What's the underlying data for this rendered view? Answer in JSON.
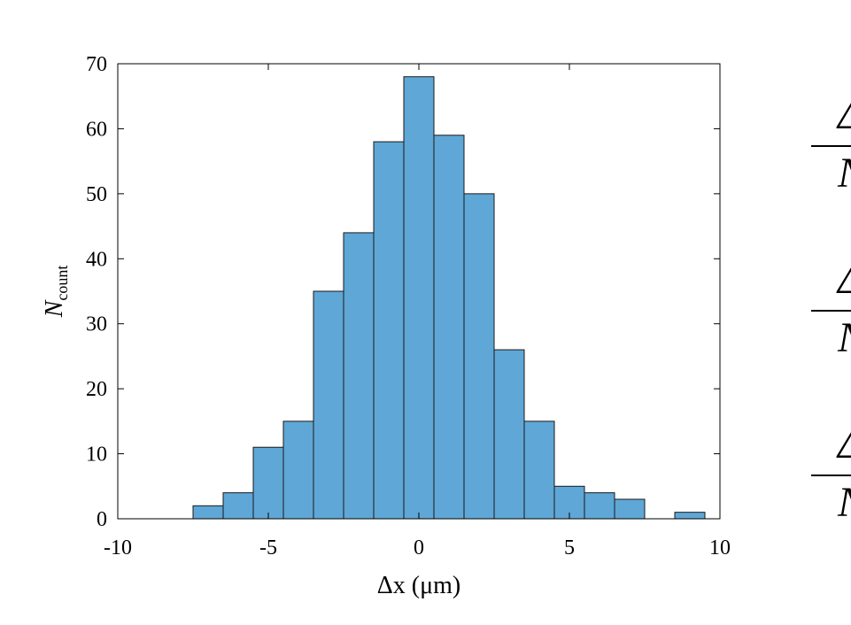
{
  "chart_data": {
    "type": "bar",
    "subtype": "histogram",
    "bin_edges": [
      -7.5,
      -6.5,
      -5.5,
      -4.5,
      -3.5,
      -2.5,
      -1.5,
      -0.5,
      0.5,
      1.5,
      2.5,
      3.5,
      4.5,
      5.5,
      6.5,
      7.5,
      8.5,
      9.5
    ],
    "counts": [
      2,
      4,
      11,
      15,
      35,
      44,
      58,
      68,
      59,
      50,
      26,
      15,
      5,
      4,
      3,
      0,
      1
    ],
    "title": "",
    "xlabel": "Δx (μm)",
    "ylabel_main": "N",
    "ylabel_sub": "count",
    "xlim": [
      -10,
      10
    ],
    "ylim": [
      0,
      70
    ],
    "xticks": [
      -10,
      -5,
      0,
      5,
      10
    ],
    "xtick_labels": [
      "-10",
      "-5",
      "0",
      "5",
      "10"
    ],
    "yticks": [
      0,
      10,
      20,
      30,
      40,
      50,
      60,
      70
    ],
    "ytick_labels": [
      "0",
      "10",
      "20",
      "30",
      "40",
      "50",
      "60",
      "70"
    ],
    "grid": false,
    "legend": "none",
    "bar_color": "#5fa7d6",
    "edge_color": "#1a1a1a"
  },
  "cut_off_equations": [
    {
      "numerator": "Δ",
      "denominator": "N"
    },
    {
      "numerator": "Δ",
      "denominator": "N"
    },
    {
      "numerator": "Δ",
      "denominator": "N"
    }
  ]
}
